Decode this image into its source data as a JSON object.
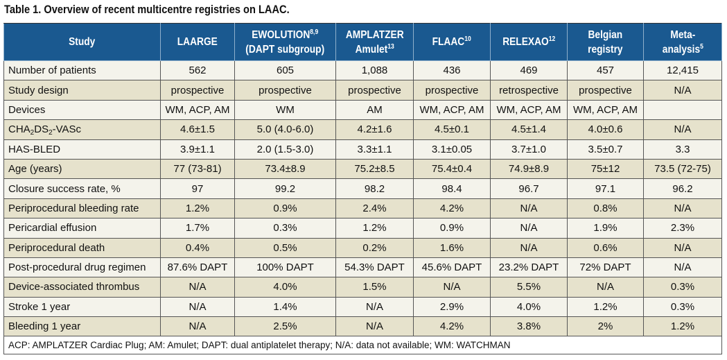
{
  "title": "Table 1. Overview of recent multicentre registries on LAAC.",
  "columns": [
    {
      "lines": [
        "Study"
      ]
    },
    {
      "lines": [
        "LAARGE"
      ]
    },
    {
      "lines": [
        "EWOLUTION",
        "(DAPT subgroup)"
      ],
      "sup": "8,9"
    },
    {
      "lines": [
        "AMPLATZER",
        "Amulet"
      ],
      "sup": "13"
    },
    {
      "lines": [
        "FLAAC"
      ],
      "sup": "10"
    },
    {
      "lines": [
        "RELEXAO"
      ],
      "sup": "12"
    },
    {
      "lines": [
        "Belgian",
        "registry"
      ]
    },
    {
      "lines": [
        "Meta-",
        "analysis"
      ],
      "sup": "5"
    }
  ],
  "rows": [
    {
      "label": "Number of patients",
      "values": [
        "562",
        "605",
        "1,088",
        "436",
        "469",
        "457",
        "12,415"
      ]
    },
    {
      "label": "Study design",
      "values": [
        "prospective",
        "prospective",
        "prospective",
        "prospective",
        "retrospective",
        "prospective",
        "N/A"
      ]
    },
    {
      "label": "Devices",
      "values": [
        "WM, ACP, AM",
        "WM",
        "AM",
        "WM, ACP, AM",
        "WM, ACP, AM",
        "WM, ACP, AM",
        ""
      ]
    },
    {
      "label": "CHA2DS2-VASc",
      "label_parts": [
        {
          "t": "CHA"
        },
        {
          "t": "2",
          "sub": true
        },
        {
          "t": "DS"
        },
        {
          "t": "2",
          "sub": true
        },
        {
          "t": "-VASc"
        }
      ],
      "values": [
        "4.6±1.5",
        "5.0 (4.0-6.0)",
        "4.2±1.6",
        "4.5±0.1",
        "4.5±1.4",
        "4.0±0.6",
        "N/A"
      ]
    },
    {
      "label": "HAS-BLED",
      "values": [
        "3.9±1.1",
        "2.0 (1.5-3.0)",
        "3.3±1.1",
        "3.1±0.05",
        "3.7±1.0",
        "3.5±0.7",
        "3.3"
      ]
    },
    {
      "label": "Age (years)",
      "values": [
        "77 (73-81)",
        "73.4±8.9",
        "75.2±8.5",
        "75.4±0.4",
        "74.9±8.9",
        "75±12",
        "73.5 (72-75)"
      ]
    },
    {
      "label": "Closure success rate, %",
      "values": [
        "97",
        "99.2",
        "98.2",
        "98.4",
        "96.7",
        "97.1",
        "96.2"
      ]
    },
    {
      "label": "Periprocedural bleeding rate",
      "values": [
        "1.2%",
        "0.9%",
        "2.4%",
        "4.2%",
        "N/A",
        "0.8%",
        "N/A"
      ]
    },
    {
      "label": "Pericardial effusion",
      "values": [
        "1.7%",
        "0.3%",
        "1.2%",
        "0.9%",
        "N/A",
        "1.9%",
        "2.3%"
      ]
    },
    {
      "label": "Periprocedural death",
      "values": [
        "0.4%",
        "0.5%",
        "0.2%",
        "1.6%",
        "N/A",
        "0.6%",
        "N/A"
      ]
    },
    {
      "label": "Post-procedural drug regimen",
      "values": [
        "87.6% DAPT",
        "100% DAPT",
        "54.3% DAPT",
        "45.6% DAPT",
        "23.2% DAPT",
        "72% DAPT",
        "N/A"
      ]
    },
    {
      "label": "Device-associated thrombus",
      "values": [
        "N/A",
        "4.0%",
        "1.5%",
        "N/A",
        "5.5%",
        "N/A",
        "0.3%"
      ]
    },
    {
      "label": "Stroke 1 year",
      "values": [
        "N/A",
        "1.4%",
        "N/A",
        "2.9%",
        "4.0%",
        "1.2%",
        "0.3%"
      ]
    },
    {
      "label": "Bleeding 1 year",
      "values": [
        "N/A",
        "2.5%",
        "N/A",
        "4.2%",
        "3.8%",
        "2%",
        "1.2%"
      ]
    }
  ],
  "footnote": "ACP: AMPLATZER Cardiac Plug; AM: Amulet; DAPT: dual antiplatelet therapy; N/A: data not available; WM: WATCHMAN",
  "colors": {
    "header_bg": "#1a5990",
    "row_light": "#f4f3eb",
    "row_dark": "#e6e2cc"
  }
}
